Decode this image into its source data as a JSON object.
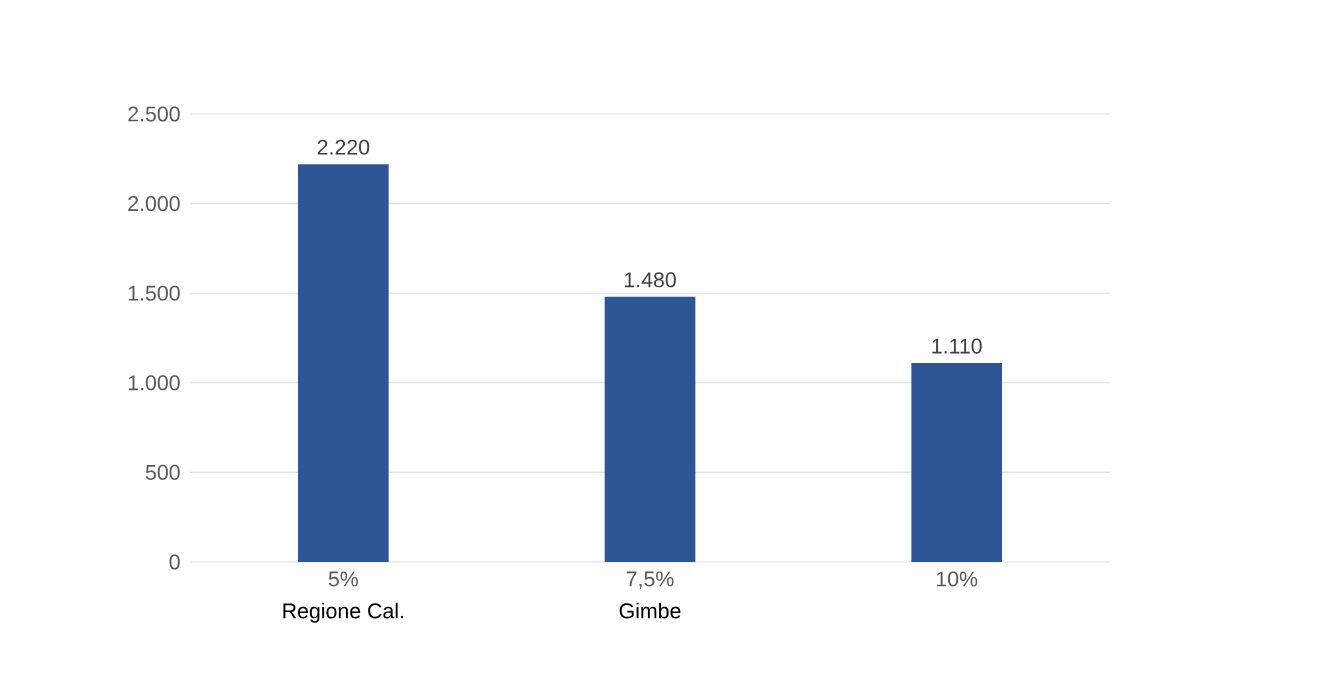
{
  "chart_data": {
    "type": "bar",
    "categories": [
      "5%",
      "7,5%",
      "10%"
    ],
    "values": [
      2220,
      1480,
      1110
    ],
    "value_labels": [
      "2.220",
      "1.480",
      "1.110"
    ],
    "color": "#2e5596",
    "ylim": [
      0,
      2500
    ],
    "yticks": [
      {
        "value": 0,
        "label": "0"
      },
      {
        "value": 500,
        "label": "500"
      },
      {
        "value": 1000,
        "label": "1.000"
      },
      {
        "value": 1500,
        "label": "1.500"
      },
      {
        "value": 2000,
        "label": "2.000"
      },
      {
        "value": 2500,
        "label": "2.500"
      }
    ],
    "grid": "y",
    "annotations": [
      "Regione Cal.",
      "Gimbe"
    ]
  }
}
